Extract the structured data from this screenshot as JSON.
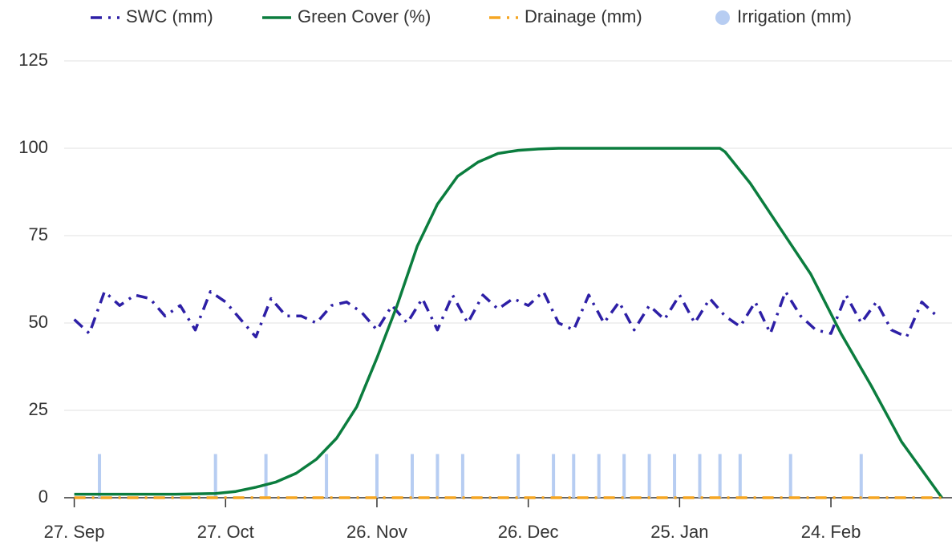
{
  "chart_data": {
    "type": "line",
    "xlim": [
      -2,
      174
    ],
    "xticks": [
      {
        "value": 0,
        "label": "27. Sep"
      },
      {
        "value": 30,
        "label": "27. Oct"
      },
      {
        "value": 60,
        "label": "26. Nov"
      },
      {
        "value": 90,
        "label": "26. Dec"
      },
      {
        "value": 120,
        "label": "25. Jan"
      },
      {
        "value": 150,
        "label": "24. Feb"
      }
    ],
    "ylim": [
      0,
      125
    ],
    "yticks": [
      0,
      25,
      50,
      75,
      100,
      125
    ],
    "grid": true,
    "legend": "top",
    "series": [
      {
        "name": "SWC (mm)",
        "type": "line",
        "dash": "dash-dot",
        "color": "#2d1fa6",
        "x": [
          0,
          3,
          6,
          9,
          12,
          15,
          18,
          21,
          24,
          27,
          30,
          33,
          36,
          39,
          42,
          45,
          48,
          51,
          54,
          57,
          60,
          63,
          66,
          69,
          72,
          75,
          78,
          81,
          84,
          87,
          90,
          93,
          96,
          99,
          102,
          105,
          108,
          111,
          114,
          117,
          120,
          123,
          126,
          129,
          132,
          135,
          138,
          141,
          144,
          147,
          150,
          153,
          156,
          159,
          162,
          165,
          168,
          171
        ],
        "values": [
          51,
          47,
          59,
          55,
          58,
          57,
          52,
          55,
          48,
          59,
          56,
          51,
          46,
          57,
          52,
          52,
          50,
          55,
          56,
          53,
          48,
          55,
          50,
          57,
          48,
          58,
          50,
          58,
          54,
          57,
          55,
          59,
          50,
          48,
          58,
          50,
          56,
          48,
          55,
          51,
          58,
          50,
          57,
          52,
          49,
          56,
          47,
          59,
          52,
          48,
          47,
          58,
          50,
          56,
          48,
          46,
          56,
          52
        ]
      },
      {
        "name": "Green Cover (%)",
        "type": "line",
        "dash": "solid",
        "color": "#0b7d3e",
        "x": [
          0,
          10,
          20,
          28,
          32,
          36,
          40,
          44,
          48,
          52,
          56,
          60,
          64,
          68,
          72,
          76,
          80,
          84,
          88,
          92,
          96,
          128,
          129,
          134,
          140,
          146,
          152,
          158,
          164,
          172
        ],
        "values": [
          1,
          1,
          1,
          1.2,
          1.8,
          3,
          4.5,
          7,
          11,
          17,
          26,
          40,
          55,
          72,
          84,
          92,
          96,
          98.5,
          99.4,
          99.8,
          100,
          100,
          99,
          90,
          77,
          64,
          47,
          32,
          16,
          0
        ]
      },
      {
        "name": "Drainage (mm)",
        "type": "line",
        "dash": "dash-dot",
        "color": "#f5a623",
        "x": [
          0,
          172
        ],
        "values": [
          0,
          0
        ]
      },
      {
        "name": "Irrigation (mm)",
        "type": "bar",
        "color": "#b7cdf2",
        "x": [
          5,
          28,
          38,
          50,
          60,
          67,
          72,
          77,
          88,
          95,
          99,
          104,
          109,
          114,
          119,
          124,
          128,
          132,
          142,
          156
        ],
        "values": [
          12.5,
          12.5,
          12.5,
          12.5,
          12.5,
          12.5,
          12.5,
          12.5,
          12.5,
          12.5,
          12.5,
          12.5,
          12.5,
          12.5,
          12.5,
          12.5,
          12.5,
          12.5,
          12.5,
          12.5
        ]
      }
    ]
  }
}
